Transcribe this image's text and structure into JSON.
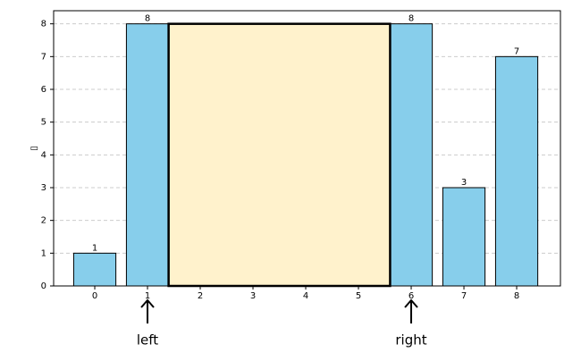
{
  "chart_data": {
    "type": "bar",
    "ylabel": "▯",
    "categories": [
      0,
      1,
      2,
      3,
      4,
      5,
      6,
      7,
      8
    ],
    "values": [
      1,
      8,
      null,
      null,
      null,
      null,
      8,
      3,
      7
    ],
    "color": "#87ceeb",
    "bar_width": 0.8,
    "xlim": [
      -0.78,
      8.83
    ],
    "xticks": [
      0,
      1,
      2,
      3,
      4,
      5,
      6,
      7,
      8
    ],
    "ylim": [
      0,
      8.4
    ],
    "yticks": [
      0,
      1,
      2,
      3,
      4,
      5,
      6,
      7,
      8
    ],
    "grid": true,
    "container": {
      "left": 1,
      "right": 6,
      "height": 8,
      "color": "#fff2cc"
    },
    "annotations": [
      {
        "text": "left",
        "x": 1
      },
      {
        "text": "right",
        "x": 6
      }
    ]
  }
}
